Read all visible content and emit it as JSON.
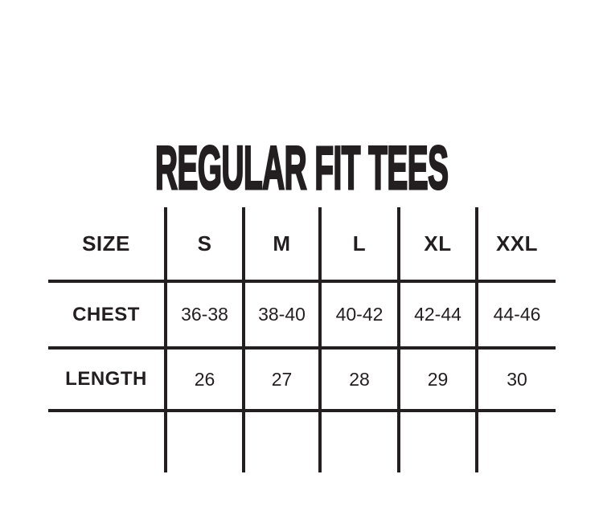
{
  "title": "REGULAR FIT TEES",
  "colors": {
    "text": "#231f20",
    "line": "#231f20",
    "background": "#ffffff"
  },
  "table": {
    "columns": [
      "SIZE",
      "S",
      "M",
      "L",
      "XL",
      "XXL"
    ],
    "rows": [
      {
        "label": "CHEST",
        "values": [
          "36-38",
          "38-40",
          "40-42",
          "42-44",
          "44-46"
        ]
      },
      {
        "label": "LENGTH",
        "values": [
          "26",
          "27",
          "28",
          "29",
          "30"
        ]
      }
    ]
  },
  "chart_data": {
    "type": "table",
    "title": "REGULAR FIT TEES",
    "columns": [
      "SIZE",
      "S",
      "M",
      "L",
      "XL",
      "XXL"
    ],
    "rows": [
      [
        "CHEST",
        "36-38",
        "38-40",
        "40-42",
        "42-44",
        "44-46"
      ],
      [
        "LENGTH",
        "26",
        "27",
        "28",
        "29",
        "30"
      ]
    ]
  }
}
